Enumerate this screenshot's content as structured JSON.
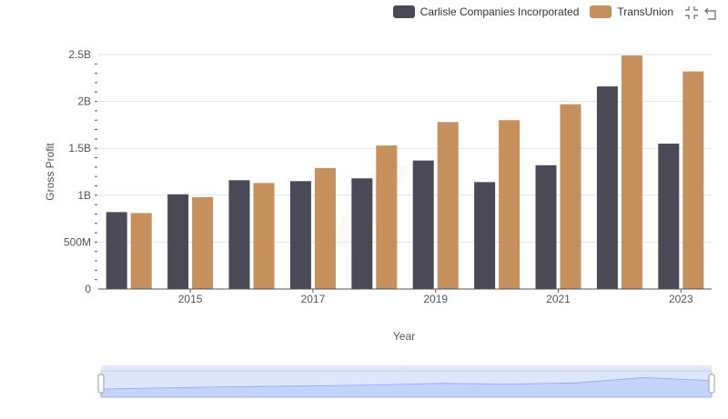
{
  "chart_data": {
    "type": "bar",
    "title": "",
    "xlabel": "Year",
    "ylabel": "Gross Profit",
    "categories": [
      "2014",
      "2015",
      "2016",
      "2017",
      "2018",
      "2019",
      "2020",
      "2021",
      "2022",
      "2023"
    ],
    "x_tick_labels": [
      "2015",
      "2017",
      "2019",
      "2021",
      "2023"
    ],
    "y_tick_labels": [
      "0",
      "500M",
      "1B",
      "1.5B",
      "2B",
      "2.5B"
    ],
    "ylim": [
      0,
      2500000000
    ],
    "grid": true,
    "legend_position": "top-right",
    "series": [
      {
        "name": "Carlisle Companies Incorporated",
        "color": "#4a4955",
        "values": [
          820000000,
          1010000000,
          1160000000,
          1150000000,
          1180000000,
          1370000000,
          1140000000,
          1320000000,
          2160000000,
          1550000000
        ]
      },
      {
        "name": "TransUnion",
        "color": "#c6905c",
        "values": [
          810000000,
          980000000,
          1130000000,
          1290000000,
          1530000000,
          1780000000,
          1800000000,
          1970000000,
          2490000000,
          2320000000
        ]
      }
    ]
  },
  "legend_icons": {
    "series_0": "dark-gray-swatch",
    "series_1": "tan-swatch"
  },
  "toolbox": {
    "zoom_icon": "zoom-select-icon",
    "restore_icon": "restore-icon"
  }
}
